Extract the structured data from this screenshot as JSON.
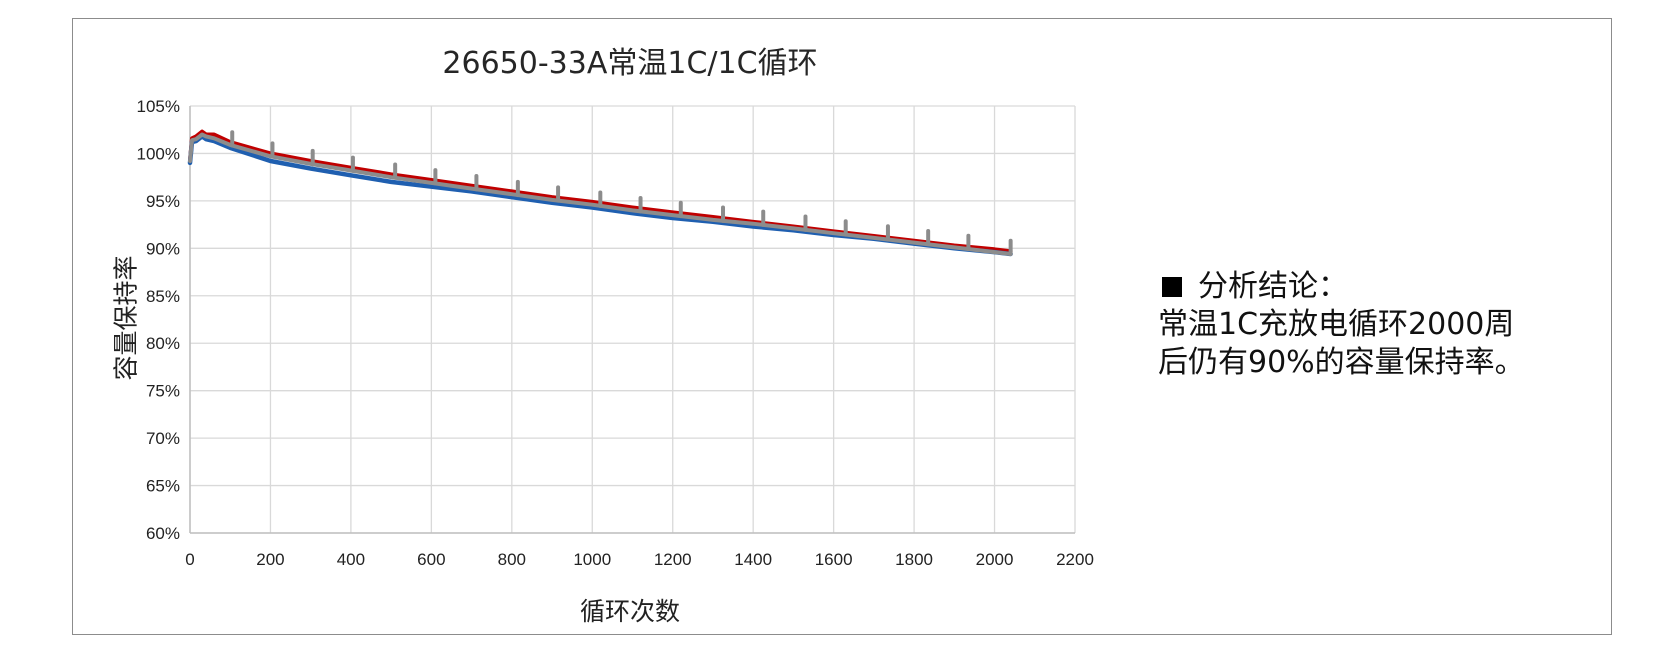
{
  "chart_data": {
    "type": "line",
    "title": "26650-33A常温1C/1C循环",
    "xlabel": "循环次数",
    "ylabel": "容量保持率",
    "xlim": [
      0,
      2200
    ],
    "ylim": [
      60,
      105
    ],
    "x_ticks": [
      "0",
      "200",
      "400",
      "600",
      "800",
      "1000",
      "1200",
      "1400",
      "1600",
      "1800",
      "2000",
      "2200"
    ],
    "y_ticks": [
      "60%",
      "65%",
      "70%",
      "75%",
      "80%",
      "85%",
      "90%",
      "95%",
      "100%",
      "105%"
    ],
    "grid": true,
    "legend": "none",
    "series": [
      {
        "color": "#c00000",
        "x": [
          0,
          5,
          15,
          30,
          40,
          60,
          100,
          200,
          300,
          400,
          500,
          600,
          700,
          800,
          900,
          1000,
          1100,
          1200,
          1300,
          1400,
          1500,
          1600,
          1700,
          1800,
          1900,
          2000,
          2040
        ],
        "y": [
          99.3,
          101.6,
          101.8,
          102.3,
          102.0,
          102.0,
          101.2,
          100.0,
          99.2,
          98.5,
          97.8,
          97.2,
          96.6,
          96.0,
          95.4,
          94.9,
          94.3,
          93.8,
          93.3,
          92.8,
          92.3,
          91.8,
          91.3,
          90.8,
          90.3,
          89.9,
          89.7
        ]
      },
      {
        "color": "#1f5fb0",
        "x": [
          0,
          5,
          15,
          30,
          40,
          60,
          100,
          200,
          300,
          400,
          500,
          600,
          700,
          800,
          900,
          1000,
          1100,
          1200,
          1300,
          1400,
          1500,
          1600,
          1700,
          1800,
          1900,
          2000,
          2040
        ],
        "y": [
          99.0,
          101.2,
          101.3,
          101.8,
          101.5,
          101.3,
          100.6,
          99.2,
          98.4,
          97.7,
          97.0,
          96.5,
          96.0,
          95.4,
          94.8,
          94.3,
          93.7,
          93.2,
          92.8,
          92.3,
          91.9,
          91.4,
          91.0,
          90.5,
          90.0,
          89.6,
          89.4
        ]
      },
      {
        "color": "#8c8c8c",
        "x": [
          0,
          5,
          15,
          30,
          40,
          60,
          100,
          200,
          300,
          400,
          500,
          600,
          700,
          800,
          900,
          1000,
          1100,
          1200,
          1300,
          1400,
          1500,
          1600,
          1700,
          1800,
          1900,
          2000,
          2040
        ],
        "y": [
          99.2,
          101.4,
          101.5,
          102.0,
          101.8,
          101.6,
          100.9,
          99.7,
          98.9,
          98.2,
          97.5,
          96.9,
          96.3,
          95.7,
          95.1,
          94.6,
          94.0,
          93.5,
          93.0,
          92.6,
          92.1,
          91.6,
          91.1,
          90.6,
          90.1,
          89.6,
          89.4
        ],
        "spikes_x": [
          105,
          205,
          305,
          405,
          510,
          610,
          712,
          815,
          915,
          1020,
          1120,
          1220,
          1325,
          1425,
          1530,
          1630,
          1735,
          1835,
          1935,
          2040
        ],
        "spike_height": 1.4
      }
    ]
  },
  "conclusion": {
    "heading": "分析结论：",
    "line1": "常温1C充放电循环2000周",
    "line2": "后仍有90%的容量保持率。"
  },
  "icons": {
    "bullet": "black-square-icon"
  }
}
